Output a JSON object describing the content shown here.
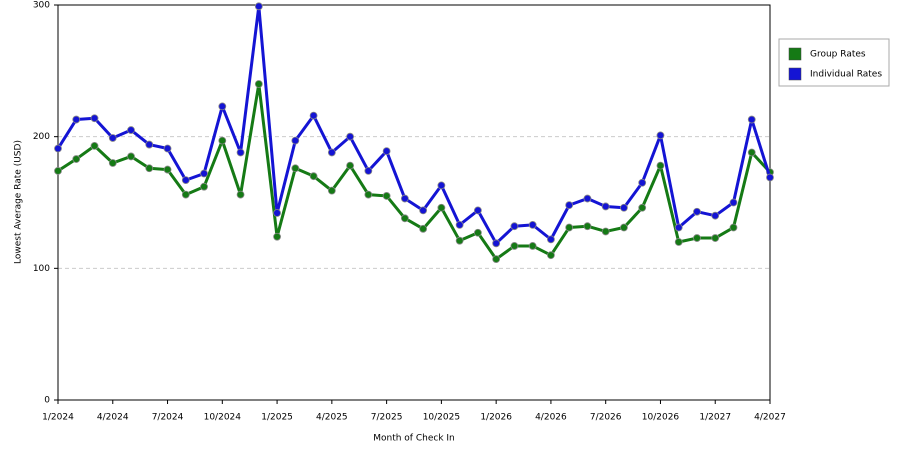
{
  "chart_data": {
    "type": "line",
    "y_label": "Lowest Average Rate (USD)",
    "x_label": "Month of Check In",
    "categories": [
      "1/2024",
      null,
      null,
      "4/2024",
      null,
      null,
      "7/2024",
      null,
      null,
      "10/2024",
      null,
      null,
      "1/2025",
      null,
      null,
      "4/2025",
      null,
      null,
      "7/2025",
      null,
      null,
      "10/2025",
      null,
      null,
      "1/2026",
      null,
      null,
      "4/2026",
      null,
      null,
      "7/2026",
      null,
      null,
      "10/2026",
      null,
      null,
      "1/2027",
      null,
      null,
      "4/2027"
    ],
    "series": [
      {
        "name": "Group Rates",
        "color": "#157a15",
        "values": [
          174,
          183,
          193,
          180,
          185,
          176,
          175,
          156,
          162,
          197,
          156,
          240,
          124,
          176,
          170,
          159,
          178,
          156,
          155,
          138,
          130,
          146,
          121,
          127,
          107,
          117,
          117,
          110,
          131,
          132,
          128,
          131,
          146,
          178,
          120,
          123,
          123,
          131,
          188,
          173
        ]
      },
      {
        "name": "Individual Rates",
        "color": "#1414d4",
        "values": [
          191,
          213,
          214,
          199,
          205,
          194,
          191,
          167,
          172,
          223,
          188,
          299,
          142,
          197,
          216,
          188,
          200,
          174,
          189,
          153,
          144,
          163,
          133,
          144,
          119,
          132,
          133,
          122,
          148,
          153,
          147,
          146,
          165,
          201,
          131,
          143,
          140,
          150,
          213,
          169
        ]
      }
    ],
    "ylim": [
      0,
      300
    ],
    "yticks": [
      0,
      100,
      200,
      300
    ],
    "grid": true,
    "legend": "top-right"
  }
}
